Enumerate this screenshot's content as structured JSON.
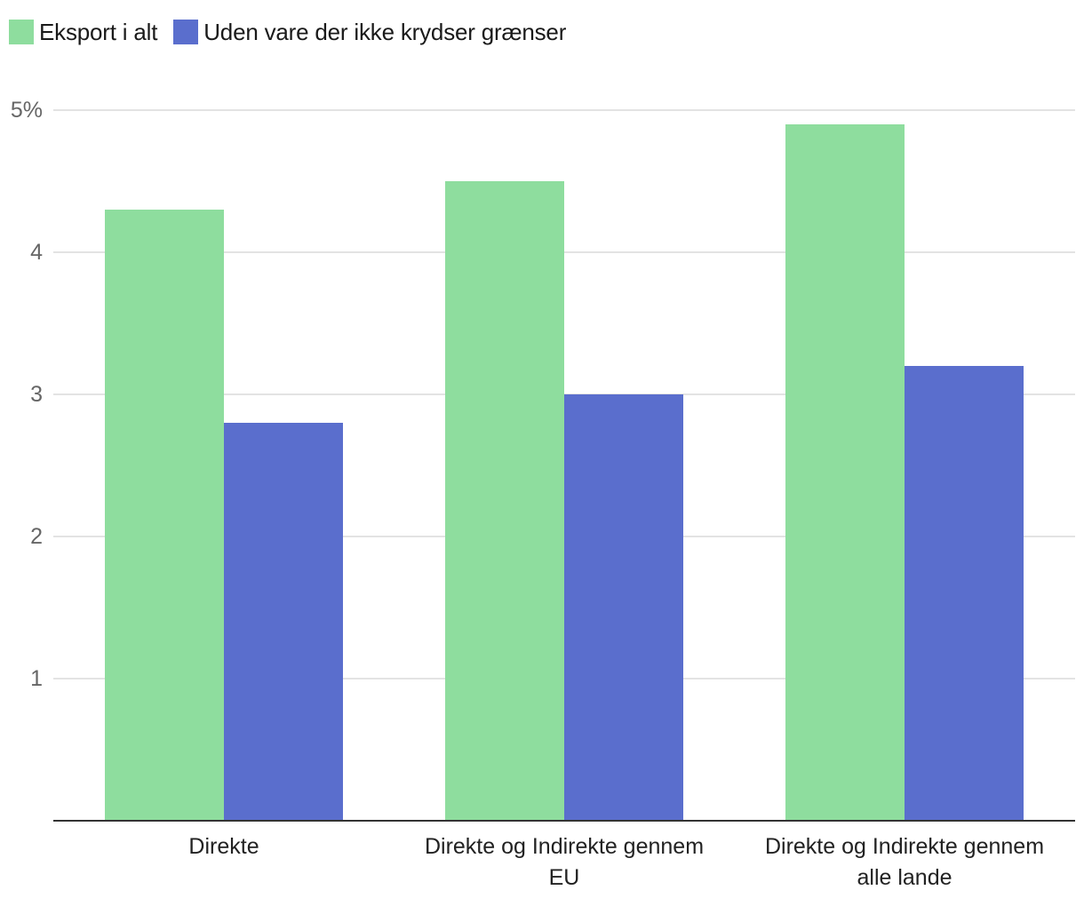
{
  "chart_data": {
    "type": "bar",
    "categories": [
      [
        "Direkte"
      ],
      [
        "Direkte og Indirekte gennem",
        "EU"
      ],
      [
        "Direkte og Indirekte gennem",
        "alle lande"
      ]
    ],
    "series": [
      {
        "name": "Eksport i alt",
        "color": "#8edd9e",
        "values": [
          4.3,
          4.5,
          4.9
        ]
      },
      {
        "name": "Uden vare der ikke krydser grænser",
        "color": "#5a6ecd",
        "values": [
          2.8,
          3.0,
          3.2
        ]
      }
    ],
    "yticks": [
      {
        "value": 1,
        "label": "1"
      },
      {
        "value": 2,
        "label": "2"
      },
      {
        "value": 3,
        "label": "3"
      },
      {
        "value": 4,
        "label": "4"
      },
      {
        "value": 5,
        "label": "5%"
      }
    ],
    "ylim": [
      0,
      5
    ],
    "grid": true,
    "legend_position": "top-left",
    "grid_color": "#e3e3e3",
    "axis_color": "#333333"
  }
}
